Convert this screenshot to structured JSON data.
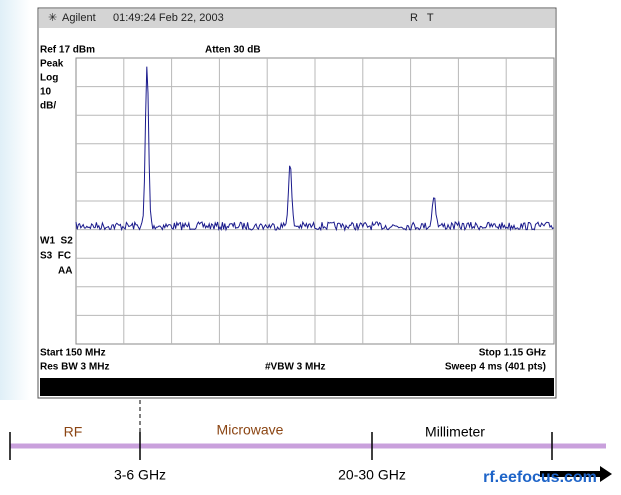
{
  "header": {
    "brand": "Agilent",
    "timestamp": "01:49:24  Feb 22, 2003",
    "status": "R   T"
  },
  "analyzer": {
    "ref_level": "Ref 17 dBm",
    "attenuation": "Atten 30 dB",
    "left_labels": [
      "Peak",
      "Log",
      "10",
      "dB/"
    ],
    "marker_labels": [
      "W1  S2",
      "S3  FC",
      "AA"
    ],
    "start": "Start 150 MHz",
    "stop": "Stop 1.15 GHz",
    "res_bw": "Res BW 3 MHz",
    "vbw": "#VBW 3 MHz",
    "sweep": "Sweep 4 ms (401 pts)"
  },
  "bands": {
    "labels": [
      "RF",
      "Microwave",
      "Millimeter"
    ],
    "boundaries": [
      "3-6 GHz",
      "20-30 GHz"
    ]
  },
  "watermark": "rf.eefocus.com"
}
